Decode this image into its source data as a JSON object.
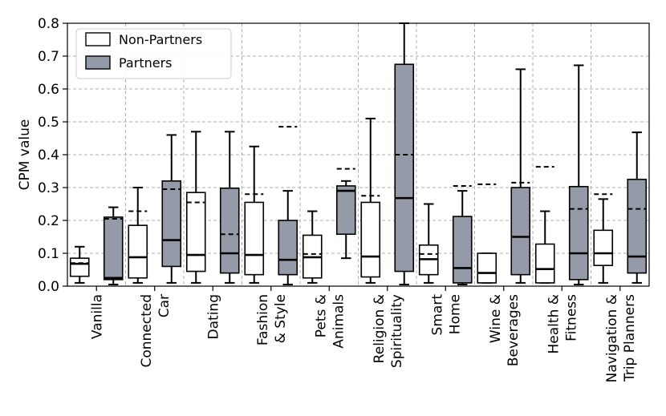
{
  "chart_data": {
    "type": "box",
    "ylabel": "CPM value",
    "xlabel": "",
    "ylim": [
      0,
      0.8
    ],
    "yticks": [
      "0.0",
      "0.1",
      "0.2",
      "0.3",
      "0.4",
      "0.5",
      "0.6",
      "0.7",
      "0.8"
    ],
    "grid": true,
    "legend_placement": "top-left",
    "colors": {
      "non_partners": "#ffffff",
      "partners": "#959aa8",
      "grid": "#b0b0b0"
    },
    "series": [
      {
        "name": "Non-Partners"
      },
      {
        "name": "Partners"
      }
    ],
    "categories": [
      {
        "lines": [
          "Vanilla"
        ],
        "non_partners": {
          "whislo": 0.01,
          "q1": 0.03,
          "med": 0.068,
          "q3": 0.085,
          "whishi": 0.12,
          "mean": 0.07
        },
        "partners": {
          "whislo": 0.005,
          "q1": 0.02,
          "med": 0.025,
          "q3": 0.21,
          "whishi": 0.24,
          "mean": 0.205
        }
      },
      {
        "lines": [
          "Connected",
          "Car"
        ],
        "non_partners": {
          "whislo": 0.01,
          "q1": 0.025,
          "med": 0.088,
          "q3": 0.185,
          "whishi": 0.3,
          "mean": 0.228
        },
        "partners": {
          "whislo": 0.01,
          "q1": 0.06,
          "med": 0.14,
          "q3": 0.32,
          "whishi": 0.46,
          "mean": 0.295
        }
      },
      {
        "lines": [
          "Dating"
        ],
        "non_partners": {
          "whislo": 0.01,
          "q1": 0.045,
          "med": 0.095,
          "q3": 0.285,
          "whishi": 0.47,
          "mean": 0.255
        },
        "partners": {
          "whislo": 0.01,
          "q1": 0.04,
          "med": 0.1,
          "q3": 0.298,
          "whishi": 0.47,
          "mean": 0.158
        }
      },
      {
        "lines": [
          "Fashion",
          "& Style"
        ],
        "non_partners": {
          "whislo": 0.01,
          "q1": 0.035,
          "med": 0.095,
          "q3": 0.255,
          "whishi": 0.425,
          "mean": 0.28
        },
        "partners": {
          "whislo": 0.005,
          "q1": 0.035,
          "med": 0.08,
          "q3": 0.2,
          "whishi": 0.29,
          "mean": 0.485
        }
      },
      {
        "lines": [
          "Pets &",
          "Animals"
        ],
        "non_partners": {
          "whislo": 0.01,
          "q1": 0.025,
          "med": 0.088,
          "q3": 0.155,
          "whishi": 0.228,
          "mean": 0.098
        },
        "partners": {
          "whislo": 0.085,
          "q1": 0.158,
          "med": 0.29,
          "q3": 0.305,
          "whishi": 0.32,
          "mean": 0.357
        }
      },
      {
        "lines": [
          "Religion &",
          "Spirituality"
        ],
        "non_partners": {
          "whislo": 0.01,
          "q1": 0.028,
          "med": 0.09,
          "q3": 0.255,
          "whishi": 0.51,
          "mean": 0.275
        },
        "partners": {
          "whislo": 0.005,
          "q1": 0.045,
          "med": 0.268,
          "q3": 0.675,
          "whishi": 0.8,
          "mean": 0.4
        }
      },
      {
        "lines": [
          "Smart",
          "Home"
        ],
        "non_partners": {
          "whislo": 0.01,
          "q1": 0.035,
          "med": 0.082,
          "q3": 0.125,
          "whishi": 0.25,
          "mean": 0.098
        },
        "partners": {
          "whislo": 0.005,
          "q1": 0.01,
          "med": 0.055,
          "q3": 0.212,
          "whishi": 0.29,
          "mean": 0.305
        }
      },
      {
        "lines": [
          "Wine &",
          "Beverages"
        ],
        "non_partners": {
          "whislo": 0.01,
          "q1": 0.01,
          "med": 0.04,
          "q3": 0.1,
          "whishi": 0.1,
          "mean": 0.31
        },
        "partners": {
          "whislo": 0.01,
          "q1": 0.035,
          "med": 0.15,
          "q3": 0.3,
          "whishi": 0.66,
          "mean": 0.315
        }
      },
      {
        "lines": [
          "Health &",
          "Fitness"
        ],
        "non_partners": {
          "whislo": 0.01,
          "q1": 0.01,
          "med": 0.052,
          "q3": 0.128,
          "whishi": 0.228,
          "mean": 0.363
        },
        "partners": {
          "whislo": 0.005,
          "q1": 0.02,
          "med": 0.1,
          "q3": 0.303,
          "whishi": 0.672,
          "mean": 0.235
        }
      },
      {
        "lines": [
          "Navigation &",
          "Trip Planners"
        ],
        "non_partners": {
          "whislo": 0.01,
          "q1": 0.063,
          "med": 0.1,
          "q3": 0.17,
          "whishi": 0.265,
          "mean": 0.28
        },
        "partners": {
          "whislo": 0.01,
          "q1": 0.04,
          "med": 0.09,
          "q3": 0.325,
          "whishi": 0.468,
          "mean": 0.235
        }
      }
    ]
  }
}
